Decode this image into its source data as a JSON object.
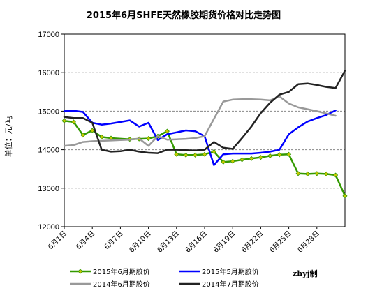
{
  "chart_data": {
    "type": "line",
    "title": "2015年6月SHFE天然橡胶期货价格对比走势图",
    "ylabel": "单位：元/吨",
    "xlabel": "",
    "signature": "zhyj制",
    "ylim": [
      12000,
      17000
    ],
    "yticks": [
      12000,
      13000,
      14000,
      15000,
      16000,
      17000
    ],
    "xlim": [
      1,
      31
    ],
    "xticks": [
      {
        "value": 1,
        "label": "6月1日"
      },
      {
        "value": 4,
        "label": "6月4日"
      },
      {
        "value": 7,
        "label": "6月7日"
      },
      {
        "value": 10,
        "label": "6月10日"
      },
      {
        "value": 13,
        "label": "6月13日"
      },
      {
        "value": 16,
        "label": "6月16日"
      },
      {
        "value": 19,
        "label": "6月19日"
      },
      {
        "value": 22,
        "label": "6月22日"
      },
      {
        "value": 25,
        "label": "6月25日"
      },
      {
        "value": 28,
        "label": "6月28日"
      }
    ],
    "grid": true,
    "legend_position": "bottom",
    "series": [
      {
        "name": "2015年6月期胶价",
        "color": "#339900",
        "marker": "diamond",
        "marker_color": "#c8c800",
        "x": [
          1,
          2,
          3,
          4,
          5,
          6,
          8,
          9,
          10,
          11,
          12,
          13,
          14,
          15,
          16,
          17,
          18,
          19,
          20,
          21,
          22,
          23,
          24,
          25,
          26,
          27,
          28,
          29,
          30,
          31
        ],
        "values": [
          14750,
          14720,
          14380,
          14500,
          14330,
          14300,
          14270,
          14280,
          14290,
          14350,
          14480,
          13880,
          13860,
          13860,
          13880,
          13950,
          13680,
          13700,
          13740,
          13770,
          13800,
          13840,
          13870,
          13880,
          13380,
          13370,
          13380,
          13370,
          13340,
          12800
        ]
      },
      {
        "name": "2015年5月期胶价",
        "color": "#0000ff",
        "x": [
          1,
          2,
          3,
          4,
          5,
          6,
          7,
          8,
          9,
          10,
          11,
          12,
          13,
          14,
          15,
          16,
          17,
          18,
          19,
          20,
          21,
          22,
          23,
          24,
          25,
          26,
          27,
          28,
          29,
          30
        ],
        "values": [
          15000,
          15010,
          14980,
          14700,
          14650,
          14680,
          14720,
          14760,
          14600,
          14700,
          14250,
          14400,
          14450,
          14500,
          14480,
          14350,
          13600,
          13880,
          13900,
          13900,
          13900,
          13920,
          13950,
          14000,
          14400,
          14580,
          14730,
          14820,
          14900,
          15020
        ]
      },
      {
        "name": "2014年6月期胶价",
        "color": "#999999",
        "x": [
          1,
          2,
          3,
          4,
          5,
          6,
          7,
          8,
          9,
          10,
          11,
          12,
          13,
          14,
          15,
          16,
          17,
          18,
          19,
          20,
          21,
          22,
          23,
          24,
          25,
          26,
          27,
          28,
          29,
          30
        ],
        "values": [
          14100,
          14120,
          14200,
          14220,
          14230,
          14240,
          14250,
          14260,
          14290,
          14100,
          14350,
          14260,
          14270,
          14280,
          14300,
          14350,
          14800,
          15250,
          15300,
          15310,
          15310,
          15300,
          15280,
          15380,
          15200,
          15100,
          15050,
          15000,
          14940,
          14880
        ]
      },
      {
        "name": "2014年7月期胶价",
        "color": "#222222",
        "x": [
          1,
          2,
          3,
          4,
          5,
          6,
          7,
          8,
          9,
          10,
          11,
          12,
          13,
          14,
          15,
          16,
          17,
          18,
          19,
          20,
          21,
          22,
          23,
          24,
          25,
          26,
          27,
          28,
          29,
          30,
          31
        ],
        "values": [
          14850,
          14820,
          14820,
          14700,
          14000,
          13950,
          13960,
          14000,
          13950,
          13920,
          13910,
          14000,
          14000,
          13990,
          13980,
          14000,
          14200,
          14050,
          14020,
          14300,
          14600,
          14950,
          15220,
          15430,
          15500,
          15700,
          15720,
          15680,
          15630,
          15600,
          16050
        ]
      }
    ]
  }
}
